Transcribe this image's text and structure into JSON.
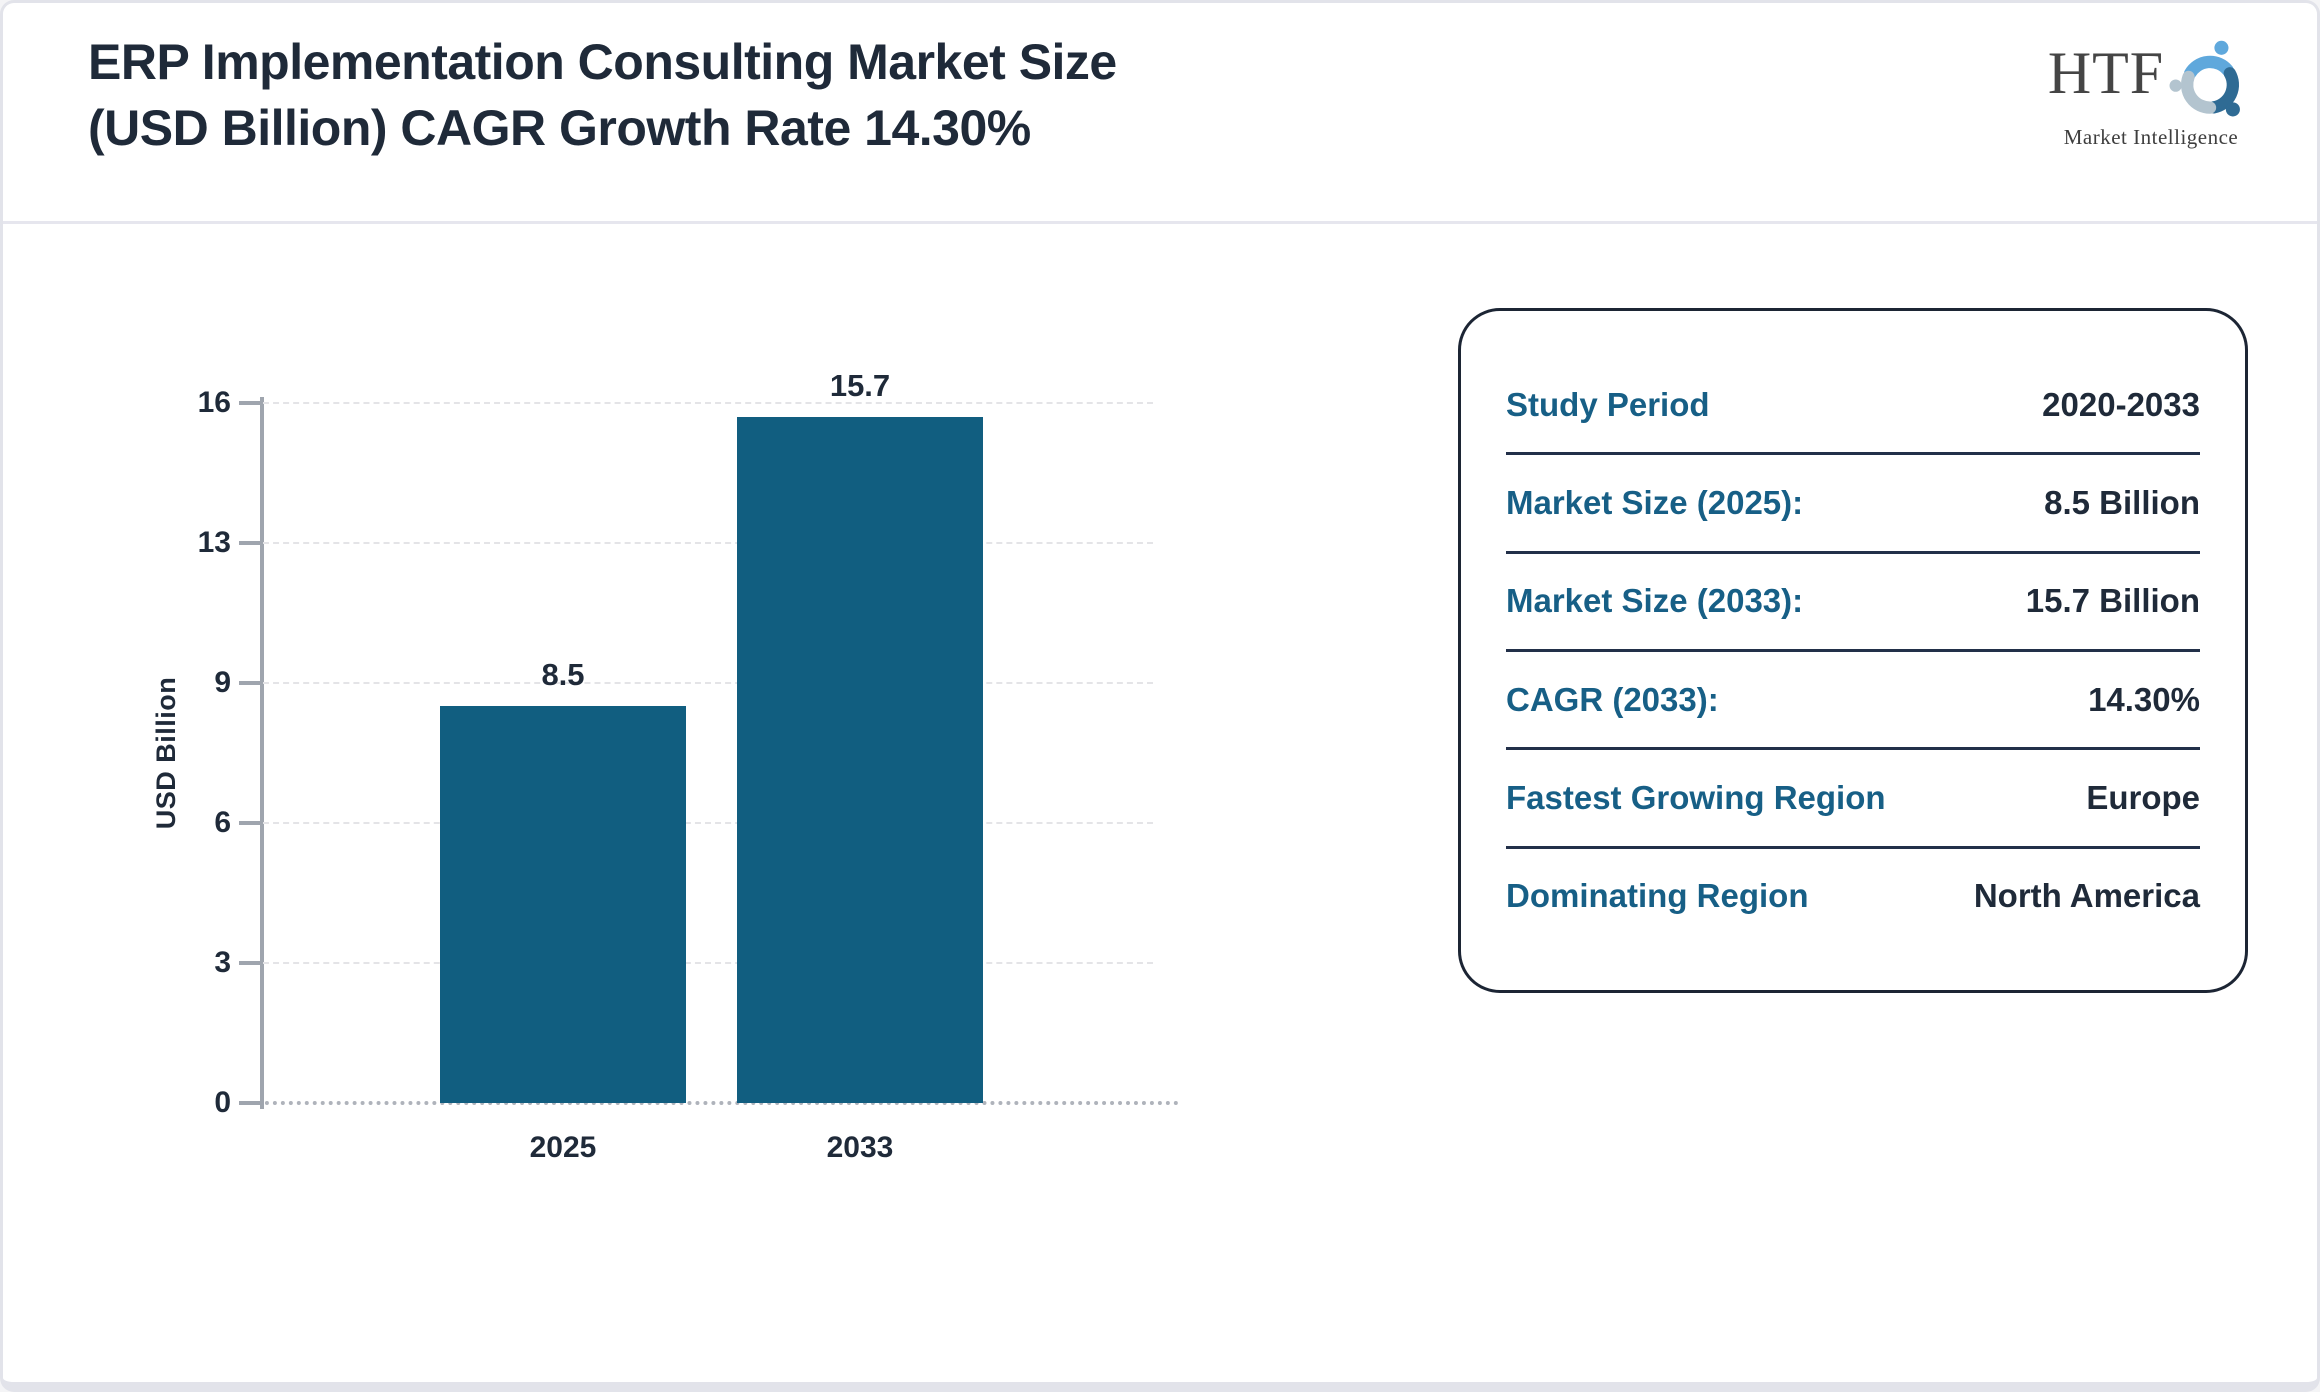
{
  "header": {
    "title_line1": "ERP Implementation Consulting Market Size",
    "title_line2": "(USD Billion) CAGR Growth Rate 14.30%",
    "logo": {
      "name": "HTF",
      "tagline": "Market Intelligence"
    }
  },
  "chart_data": {
    "type": "bar",
    "title": "ERP Implementation Consulting Market Size (USD Billion) CAGR Growth Rate 14.30%",
    "categories": [
      "2025",
      "2033"
    ],
    "values": [
      8.5,
      15.7
    ],
    "data_labels": [
      "8.5",
      "15.7"
    ],
    "ylabel": "USD Billion",
    "yticks": [
      0,
      3,
      6,
      9,
      13,
      16
    ],
    "ylim": [
      0,
      16
    ],
    "grid": "horizontal dashed, dotted zero baseline",
    "legend": "none",
    "bar_color": "#115E80"
  },
  "info_panel": {
    "rows": [
      {
        "label": "Study Period",
        "value": "2020-2033"
      },
      {
        "label": "Market Size (2025):",
        "value": "8.5 Billion"
      },
      {
        "label": "Market Size (2033):",
        "value": "15.7 Billion"
      },
      {
        "label": "CAGR (2033):",
        "value": "14.30%"
      },
      {
        "label": "Fastest Growing Region",
        "value": "Europe"
      },
      {
        "label": "Dominating Region",
        "value": "North America"
      }
    ]
  },
  "colors": {
    "bar": "#115E80",
    "panel_label_teal": "#175F86",
    "text_dark_navy": "#1F2A39",
    "gridline": "#E4E4E7",
    "axis_gray": "#9FA5AE",
    "card_border": "#E2E3EA",
    "logo_blue_light": "#5FA8DC",
    "logo_blue_dark": "#2F6B94",
    "logo_gray_blue": "#B3C4CF"
  }
}
